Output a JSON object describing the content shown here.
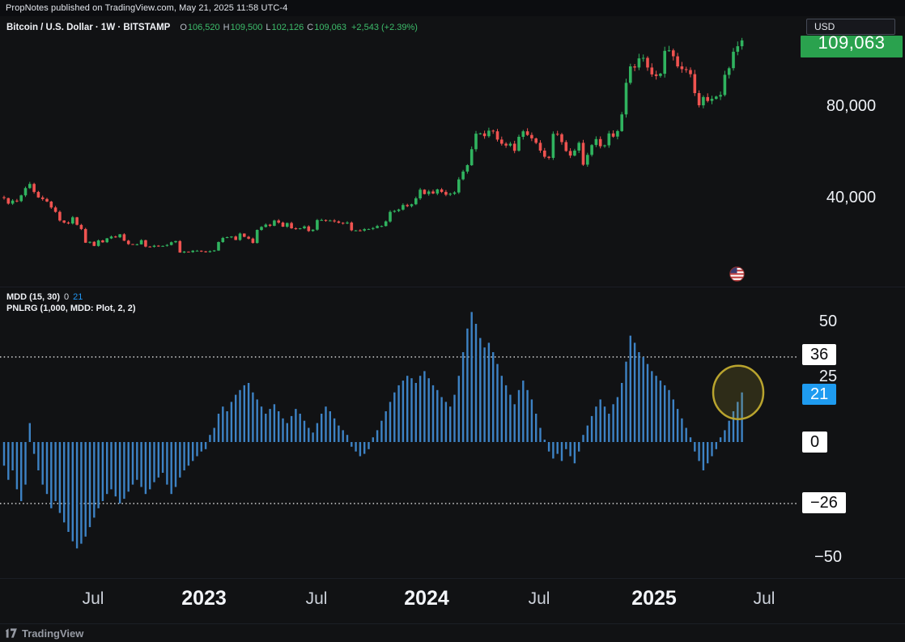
{
  "page": {
    "publish_line": "PropNotes published on TradingView.com, May 21, 2025 11:58 UTC-4"
  },
  "symbol_header": {
    "title": "Bitcoin / U.S. Dollar · 1W · BITSTAMP",
    "ohlc": [
      {
        "label": "O",
        "value": "106,520"
      },
      {
        "label": "H",
        "value": "109,500"
      },
      {
        "label": "L",
        "value": "102,126"
      },
      {
        "label": "C",
        "value": "109,063"
      }
    ],
    "change": "+2,543 (+2.39%)"
  },
  "price_axis": {
    "currency_button": "USD",
    "last_price_badge": "109,063",
    "ticks": [
      "80,000",
      "40,000"
    ]
  },
  "indicator_header": {
    "mdd_label": "MDD (15, 30)",
    "mdd_value_0": "0",
    "mdd_value_1": "21",
    "pnlrg_label": "PNLRG (1,000, MDD: Plot, 2, 2)"
  },
  "indicator_axis": {
    "tick_50": "50",
    "level_36": "36",
    "tick_25": "25",
    "level_21": "21",
    "level_0": "0",
    "level_neg26": "−26",
    "tick_neg50": "−50"
  },
  "time_axis": {
    "labels": [
      "Jul",
      "2023",
      "Jul",
      "2024",
      "Jul",
      "2025",
      "Jul"
    ]
  },
  "footer": {
    "brand": "TradingView"
  },
  "colors": {
    "background": "#111214",
    "up": "#30b35f",
    "down": "#ef5350",
    "price_badge": "#2aa24e",
    "hist": "#3d82c4",
    "value_badge_blue": "#1e9bf0",
    "level_badge_bg": "#ffffff",
    "dotted_line": "#ffffff",
    "circle_stroke": "#b9a42e",
    "circle_fill": "rgba(185,164,46,0.18)"
  },
  "chart_data": [
    {
      "type": "candlestick",
      "title": "Bitcoin / U.S. Dollar 1W BITSTAMP",
      "x_range": [
        "Feb 2022",
        "May 2025"
      ],
      "y_axis": {
        "ticks": [
          40000,
          80000
        ],
        "last_price": 109063
      },
      "latest_ohlc": {
        "open": 106520,
        "high": 109500,
        "low": 102126,
        "close": 109063,
        "change": 2543,
        "change_pct": 2.39
      },
      "closes_usd_k": [
        40.1,
        37.7,
        39.0,
        38.8,
        41.3,
        44.5,
        46.3,
        42.8,
        40.4,
        39.7,
        38.6,
        36.0,
        34.1,
        30.3,
        29.4,
        29.0,
        31.7,
        28.4,
        26.6,
        20.6,
        21.0,
        19.2,
        21.6,
        20.8,
        22.5,
        23.3,
        23.0,
        24.3,
        21.5,
        20.0,
        19.8,
        19.9,
        21.7,
        18.9,
        18.8,
        19.3,
        19.1,
        19.2,
        19.6,
        20.8,
        21.3,
        16.3,
        16.7,
        16.5,
        17.1,
        17.1,
        16.8,
        16.5,
        16.9,
        17.2,
        20.9,
        22.7,
        23.0,
        23.3,
        21.8,
        24.6,
        23.2,
        22.4,
        20.5,
        26.2,
        27.5,
        28.5,
        28.0,
        30.3,
        29.4,
        27.6,
        29.2,
        26.9,
        26.7,
        26.9,
        27.7,
        25.7,
        26.3,
        30.5,
        30.5,
        30.3,
        30.3,
        29.9,
        29.3,
        29.0,
        29.4,
        26.0,
        26.0,
        25.9,
        26.5,
        26.6,
        27.0,
        27.9,
        27.9,
        29.9,
        34.1,
        34.5,
        35.1,
        37.1,
        36.6,
        37.4,
        40.0,
        43.8,
        41.9,
        43.0,
        42.1,
        43.9,
        42.8,
        41.6,
        42.0,
        42.6,
        48.3,
        51.7,
        54.5,
        61.5,
        68.3,
        68.4,
        67.2,
        69.6,
        69.3,
        65.7,
        63.9,
        63.1,
        63.9,
        60.8,
        66.9,
        69.3,
        67.7,
        66.2,
        64.3,
        60.9,
        58.2,
        57.7,
        68.2,
        68.0,
        64.6,
        60.7,
        58.7,
        60.9,
        64.3,
        54.7,
        59.0,
        63.3,
        65.9,
        62.8,
        63.2,
        68.4,
        67.0,
        69.4,
        76.7,
        90.5,
        97.7,
        97.2,
        101.2,
        101.4,
        97.2,
        94.2,
        93.5,
        94.5,
        104.5,
        104.7,
        102.1,
        97.7,
        96.5,
        96.1,
        94.3,
        86.0,
        80.7,
        84.3,
        82.6,
        83.5,
        84.5,
        85.2,
        94.0,
        96.9,
        104.1,
        106.52,
        109.063
      ]
    },
    {
      "type": "bar",
      "title": "MDD (15, 30) histogram with PNLRG levels",
      "ylim": [
        -50,
        55
      ],
      "levels": {
        "upper_dotted": 36,
        "lower_dotted": -26,
        "zero": 0,
        "last": 21
      },
      "values": [
        -10,
        -16,
        -12,
        -20,
        -25,
        -18,
        8,
        -5,
        -12,
        -18,
        -22,
        -28,
        -25,
        -30,
        -34,
        -38,
        -42,
        -45,
        -43,
        -40,
        -36,
        -32,
        -28,
        -25,
        -22,
        -20,
        -23,
        -26,
        -24,
        -21,
        -18,
        -16,
        -19,
        -22,
        -20,
        -17,
        -15,
        -13,
        -18,
        -22,
        -19,
        -15,
        -12,
        -10,
        -8,
        -6,
        -4,
        -3,
        3,
        6,
        12,
        15,
        13,
        17,
        20,
        22,
        24,
        25,
        21,
        18,
        15,
        12,
        14,
        16,
        13,
        10,
        8,
        11,
        14,
        12,
        9,
        6,
        4,
        8,
        12,
        15,
        13,
        10,
        7,
        5,
        3,
        -2,
        -4,
        -6,
        -5,
        -3,
        2,
        5,
        9,
        13,
        17,
        21,
        24,
        26,
        28,
        27,
        25,
        28,
        30,
        27,
        24,
        22,
        19,
        17,
        15,
        20,
        28,
        38,
        48,
        55,
        50,
        44,
        40,
        42,
        38,
        33,
        28,
        24,
        20,
        16,
        22,
        26,
        22,
        18,
        12,
        6,
        1,
        -4,
        -7,
        -5,
        -8,
        -3,
        -6,
        -9,
        -4,
        3,
        7,
        11,
        15,
        18,
        15,
        12,
        16,
        19,
        25,
        34,
        45,
        42,
        38,
        36,
        33,
        30,
        28,
        26,
        24,
        22,
        18,
        14,
        10,
        6,
        2,
        -4,
        -8,
        -12,
        -9,
        -6,
        -3,
        2,
        5,
        9,
        13,
        17,
        21
      ]
    }
  ]
}
